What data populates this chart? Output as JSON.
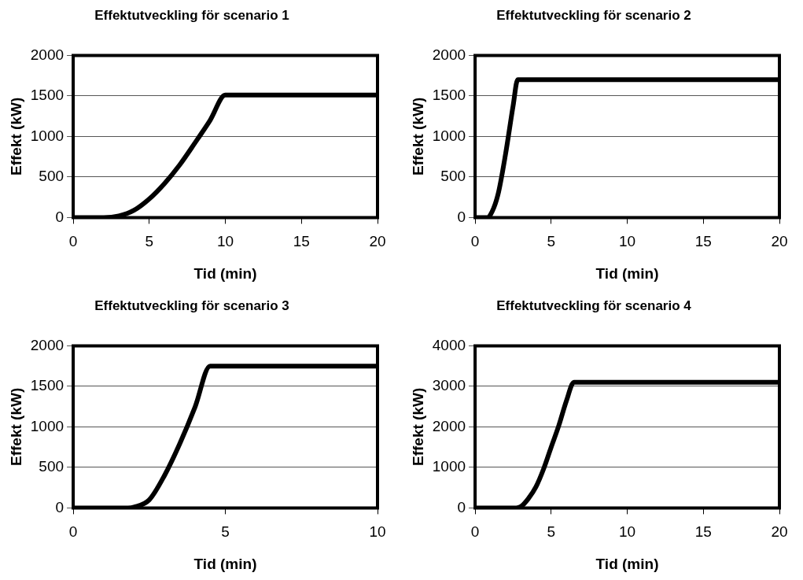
{
  "chart_data": [
    {
      "type": "line",
      "title": "Effektutveckling för scenario 1",
      "xlabel": "Tid (min)",
      "ylabel": "Effekt (kW)",
      "xlim": [
        0,
        20
      ],
      "xticks": [
        0,
        5,
        10,
        15,
        20
      ],
      "ylim": [
        0,
        2000
      ],
      "yticks": [
        0,
        500,
        1000,
        1500,
        2000
      ],
      "grid": "y",
      "legend": false,
      "marker": "none",
      "line_style": "solid",
      "series": [
        {
          "color": "#000000",
          "x": [
            0,
            2,
            3,
            4,
            5,
            6,
            7,
            8,
            9,
            10,
            20
          ],
          "values": [
            0,
            0,
            20,
            90,
            230,
            420,
            650,
            920,
            1200,
            1510,
            1510
          ]
        }
      ]
    },
    {
      "type": "line",
      "title": "Effektutveckling för scenario 2",
      "xlabel": "Tid (min)",
      "ylabel": "Effekt (kW)",
      "xlim": [
        0,
        20
      ],
      "xticks": [
        0,
        5,
        10,
        15,
        20
      ],
      "ylim": [
        0,
        2000
      ],
      "yticks": [
        0,
        500,
        1000,
        1500,
        2000
      ],
      "grid": "y",
      "legend": false,
      "marker": "none",
      "line_style": "solid",
      "series": [
        {
          "color": "#000000",
          "x": [
            0,
            0.8,
            1,
            1.5,
            2,
            2.5,
            2.8,
            20
          ],
          "values": [
            0,
            0,
            30,
            280,
            780,
            1380,
            1700,
            1700
          ]
        }
      ]
    },
    {
      "type": "line",
      "title": "Effektutveckling för scenario 3",
      "xlabel": "Tid (min)",
      "ylabel": "Effekt (kW)",
      "xlim": [
        0,
        10
      ],
      "xticks": [
        0,
        5,
        10
      ],
      "ylim": [
        0,
        2000
      ],
      "yticks": [
        0,
        500,
        1000,
        1500,
        2000
      ],
      "grid": "y",
      "legend": false,
      "marker": "none",
      "line_style": "solid",
      "series": [
        {
          "color": "#000000",
          "x": [
            0,
            1.8,
            2,
            2.5,
            3,
            3.5,
            4,
            4.5,
            10
          ],
          "values": [
            0,
            0,
            10,
            100,
            400,
            790,
            1240,
            1750,
            1750
          ]
        }
      ]
    },
    {
      "type": "line",
      "title": "Effektutveckling för scenario 4",
      "xlabel": "Tid (min)",
      "ylabel": "Effekt (kW)",
      "xlim": [
        0,
        20
      ],
      "xticks": [
        0,
        5,
        10,
        15,
        20
      ],
      "ylim": [
        0,
        4000
      ],
      "yticks": [
        0,
        1000,
        2000,
        3000,
        4000
      ],
      "grid": "y",
      "legend": false,
      "marker": "none",
      "line_style": "solid",
      "series": [
        {
          "color": "#000000",
          "x": [
            0,
            2.7,
            3,
            3.5,
            4,
            4.5,
            5,
            5.5,
            6,
            6.5,
            20
          ],
          "values": [
            0,
            0,
            30,
            230,
            520,
            960,
            1500,
            2030,
            2640,
            3100,
            3100
          ]
        }
      ]
    }
  ]
}
